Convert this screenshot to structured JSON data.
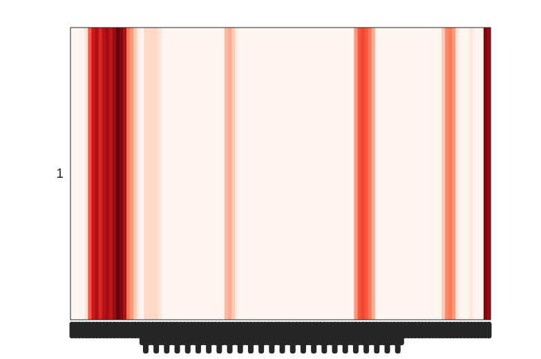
{
  "chart_data": {
    "type": "heatmap",
    "title": "",
    "xlabel": "",
    "ylabel": "",
    "y_tick_labels": [
      "1"
    ],
    "x_tick_labels_legible": false,
    "colormap": "Reds",
    "color_low": "#fff5f0",
    "color_high": "#67000d",
    "value_range": [
      0,
      1
    ],
    "rows": 1,
    "columns": 120,
    "values": [
      0.0,
      0.0,
      0.0,
      0.0,
      0.1,
      0.55,
      0.75,
      0.85,
      0.7,
      0.82,
      0.88,
      0.78,
      0.9,
      1.0,
      0.95,
      0.85,
      0.45,
      0.35,
      0.2,
      0.05,
      0.0,
      0.15,
      0.15,
      0.15,
      0.15,
      0.1,
      0.0,
      0.0,
      0.0,
      0.0,
      0.0,
      0.0,
      0.0,
      0.0,
      0.0,
      0.0,
      0.0,
      0.0,
      0.0,
      0.0,
      0.0,
      0.0,
      0.0,
      0.0,
      0.25,
      0.3,
      0.2,
      0.05,
      0.0,
      0.0,
      0.0,
      0.0,
      0.0,
      0.0,
      0.0,
      0.0,
      0.0,
      0.0,
      0.0,
      0.0,
      0.0,
      0.0,
      0.0,
      0.0,
      0.0,
      0.0,
      0.0,
      0.0,
      0.0,
      0.0,
      0.0,
      0.0,
      0.0,
      0.0,
      0.0,
      0.0,
      0.0,
      0.0,
      0.0,
      0.0,
      0.0,
      0.35,
      0.55,
      0.6,
      0.55,
      0.45,
      0.3,
      0.0,
      0.0,
      0.0,
      0.0,
      0.0,
      0.0,
      0.0,
      0.0,
      0.0,
      0.0,
      0.0,
      0.0,
      0.0,
      0.0,
      0.0,
      0.0,
      0.0,
      0.0,
      0.0,
      0.2,
      0.4,
      0.45,
      0.35,
      0.1,
      0.0,
      0.0,
      0.0,
      0.08,
      0.0,
      0.0,
      0.0,
      0.95,
      0.9
    ]
  }
}
